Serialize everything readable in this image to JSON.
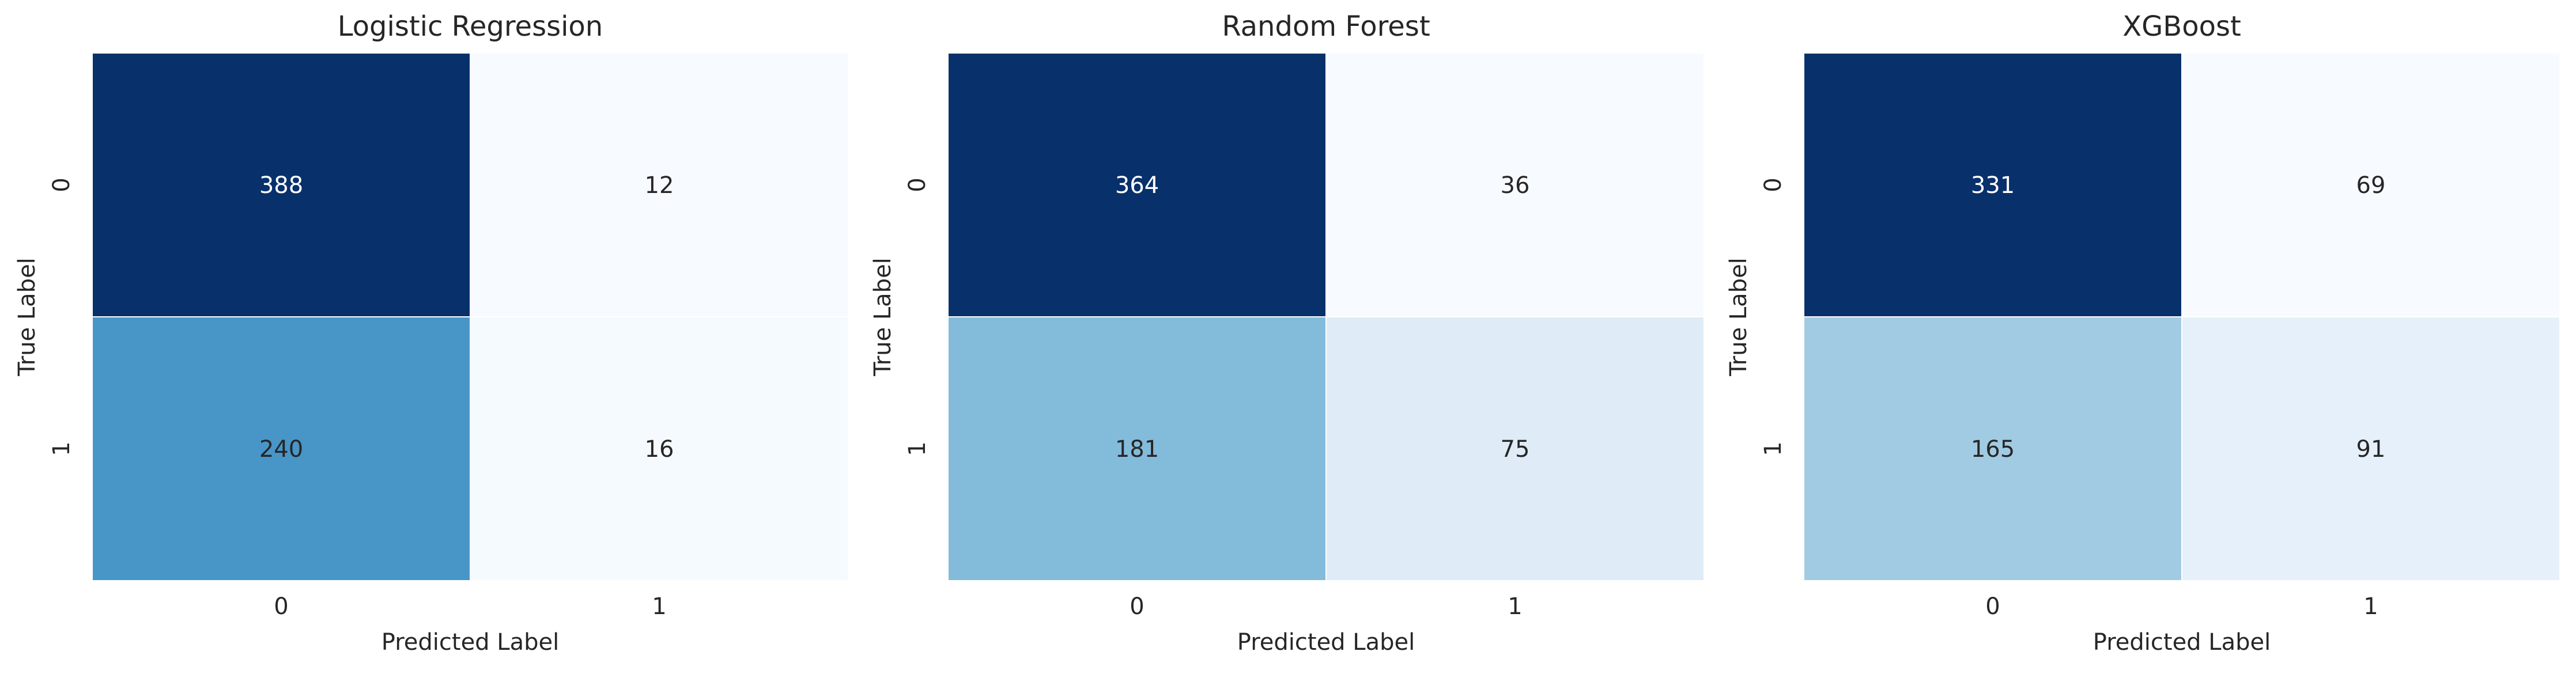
{
  "chart_data": [
    {
      "type": "heatmap",
      "title": "Logistic Regression",
      "xlabel": "Predicted Label",
      "ylabel": "True Label",
      "x_categories": [
        "0",
        "1"
      ],
      "y_categories": [
        "0",
        "1"
      ],
      "values": [
        [
          388,
          12
        ],
        [
          240,
          16
        ]
      ],
      "colormap": "Blues"
    },
    {
      "type": "heatmap",
      "title": "Random Forest",
      "xlabel": "Predicted Label",
      "ylabel": "True Label",
      "x_categories": [
        "0",
        "1"
      ],
      "y_categories": [
        "0",
        "1"
      ],
      "values": [
        [
          364,
          36
        ],
        [
          181,
          75
        ]
      ],
      "colormap": "Blues"
    },
    {
      "type": "heatmap",
      "title": "XGBoost",
      "xlabel": "Predicted Label",
      "ylabel": "True Label",
      "x_categories": [
        "0",
        "1"
      ],
      "y_categories": [
        "0",
        "1"
      ],
      "values": [
        [
          331,
          69
        ],
        [
          165,
          91
        ]
      ],
      "colormap": "Blues"
    }
  ]
}
